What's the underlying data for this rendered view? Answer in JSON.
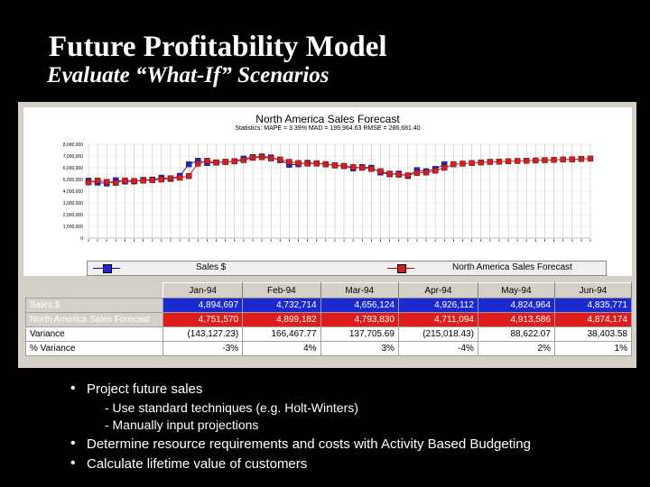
{
  "slide": {
    "title": "Future Profitability Model",
    "subtitle": "Evaluate “What-If” Scenarios"
  },
  "chart_data": {
    "type": "line",
    "title": "North America Sales Forecast",
    "stats": "Statistics:  MAPE = 3.39%   MAD = 199,964.63   RMSE = 286,681.40",
    "ylabel": "",
    "xlabel": "",
    "ylim": [
      0,
      8000000
    ],
    "yticks": [
      "8,000,000",
      "7,000,000",
      "6,000,000",
      "5,000,000",
      "4,000,000",
      "3,000,000",
      "2,000,000",
      "1,000,000",
      "0"
    ],
    "grid": true,
    "legend_placement": "bottom",
    "series": [
      {
        "name": "Sales $",
        "color": "#1a2ad0",
        "values": [
          4894697,
          4732714,
          4656124,
          4926112,
          4824964,
          4835771,
          4960000,
          4990000,
          5150000,
          5050000,
          5310000,
          6300000,
          6600000,
          6400000,
          6450000,
          6500000,
          6550000,
          6780000,
          6900000,
          6960000,
          6880000,
          6650000,
          6250000,
          6300000,
          6420000,
          6360000,
          6300000,
          6200000,
          6150000,
          5950000,
          6050000,
          6000000,
          5600000,
          5450000,
          5500000,
          5300000,
          5800000,
          5700000,
          5900000,
          6300000
        ]
      },
      {
        "name": "North America Sales Forecast",
        "color": "#d02020",
        "values": [
          4751570,
          4899182,
          4793830,
          4711094,
          4913586,
          4874174,
          4900000,
          4950000,
          5000000,
          5100000,
          5150000,
          5300000,
          6350000,
          6600000,
          6450000,
          6500000,
          6550000,
          6650000,
          6850000,
          6900000,
          6800000,
          6700000,
          6500000,
          6400000,
          6350000,
          6380000,
          6300000,
          6200000,
          6150000,
          6050000,
          6000000,
          5900000,
          5700000,
          5500000,
          5400000,
          5350000,
          5550000,
          5600000,
          5750000,
          6000000,
          6300000,
          6350000,
          6400000,
          6450000,
          6500000,
          6520000,
          6550000,
          6580000,
          6600000,
          6620000,
          6650000,
          6670000,
          6700000,
          6720000,
          6750000,
          6780000
        ]
      }
    ]
  },
  "legend": {
    "sales": "Sales $",
    "forecast": "North America Sales Forecast"
  },
  "table": {
    "columns": [
      "Jan-94",
      "Feb-94",
      "Mar-94",
      "Apr-94",
      "May-94",
      "Jun-94"
    ],
    "rows": [
      {
        "label": "Sales $",
        "cls": "sales",
        "values": [
          "4,894,697",
          "4,732,714",
          "4,656,124",
          "4,926,112",
          "4,824,964",
          "4,835,771"
        ]
      },
      {
        "label": "North America Sales Forecast",
        "cls": "forecast",
        "values": [
          "4,751,570",
          "4,899,182",
          "4,793,830",
          "4,711,094",
          "4,913,586",
          "4,874,174"
        ]
      },
      {
        "label": "Variance",
        "cls": "variance",
        "values": [
          "(143,127.23)",
          "166,467.77",
          "137,705.69",
          "(215,018.43)",
          "88,622.07",
          "38,403.58"
        ]
      },
      {
        "label": "% Variance",
        "cls": "pct",
        "values": [
          "-3%",
          "4%",
          "3%",
          "-4%",
          "2%",
          "1%"
        ]
      }
    ]
  },
  "bullets": {
    "b1": "Project future sales",
    "b1_sub1": "-  Use standard techniques (e.g. Holt-Winters)",
    "b1_sub2": "-  Manually input projections",
    "b2": "Determine resource requirements and costs with Activity Based Budgeting",
    "b3": "Calculate lifetime value of customers"
  }
}
